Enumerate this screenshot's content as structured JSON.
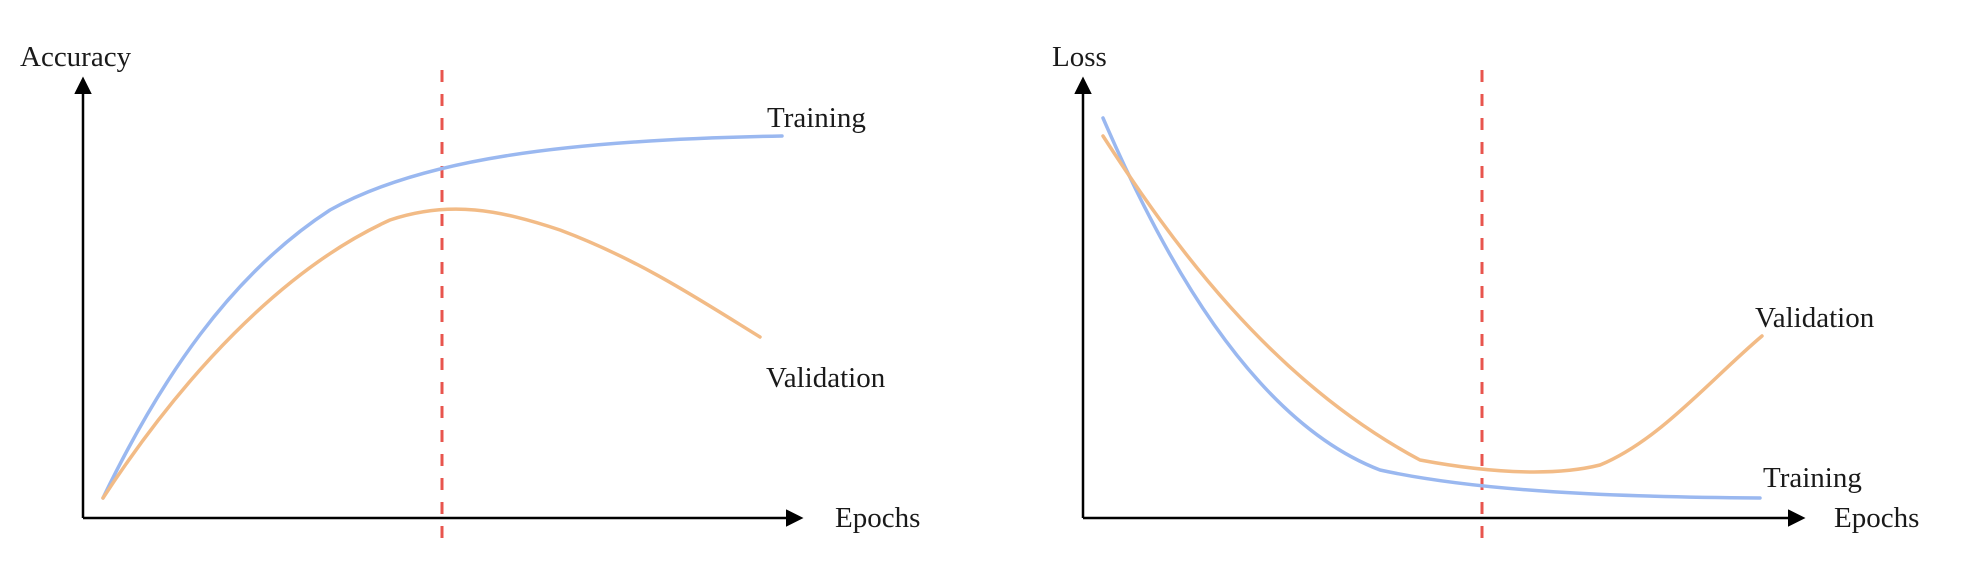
{
  "colors": {
    "training": "#9ab8f0",
    "validation": "#f2bb86",
    "early_stopping": "#e8554e",
    "axis": "#000000"
  },
  "accuracy_panel": {
    "y_label": "Accuracy",
    "x_label": "Epochs",
    "training_label": "Training",
    "validation_label": "Validation"
  },
  "loss_panel": {
    "y_label": "Loss",
    "x_label": "Epochs",
    "training_label": "Training",
    "validation_label": "Validation"
  }
}
